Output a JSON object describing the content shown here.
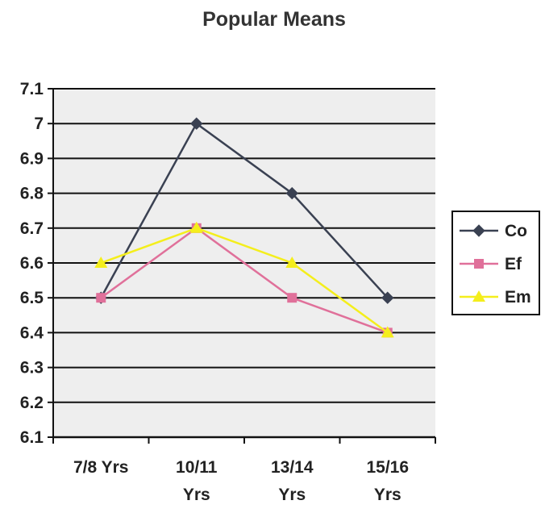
{
  "chart_data": {
    "type": "line",
    "title": "Popular Means",
    "categories": [
      [
        "7/8 Yrs"
      ],
      [
        "10/11",
        "Yrs"
      ],
      [
        "13/14",
        "Yrs"
      ],
      [
        "15/16",
        "Yrs"
      ]
    ],
    "ylim": [
      6.1,
      7.1
    ],
    "yticks": [
      "7.1",
      "7",
      "6.9",
      "6.8",
      "6.7",
      "6.6",
      "6.5",
      "6.4",
      "6.3",
      "6.2",
      "6.1"
    ],
    "grid": true,
    "legend_position": "right",
    "series": [
      {
        "name": "Co",
        "values": [
          6.5,
          7.0,
          6.8,
          6.5
        ],
        "color": "#3a4152",
        "marker": "diamond"
      },
      {
        "name": "Ef",
        "values": [
          6.5,
          6.7,
          6.5,
          6.4
        ],
        "color": "#e0709a",
        "marker": "square"
      },
      {
        "name": "Em",
        "values": [
          6.6,
          6.7,
          6.6,
          6.4
        ],
        "color": "#f4ee1c",
        "marker": "triangle"
      }
    ],
    "colors": {
      "plot_background": "#eeeeee",
      "gridline": "#111111"
    }
  }
}
